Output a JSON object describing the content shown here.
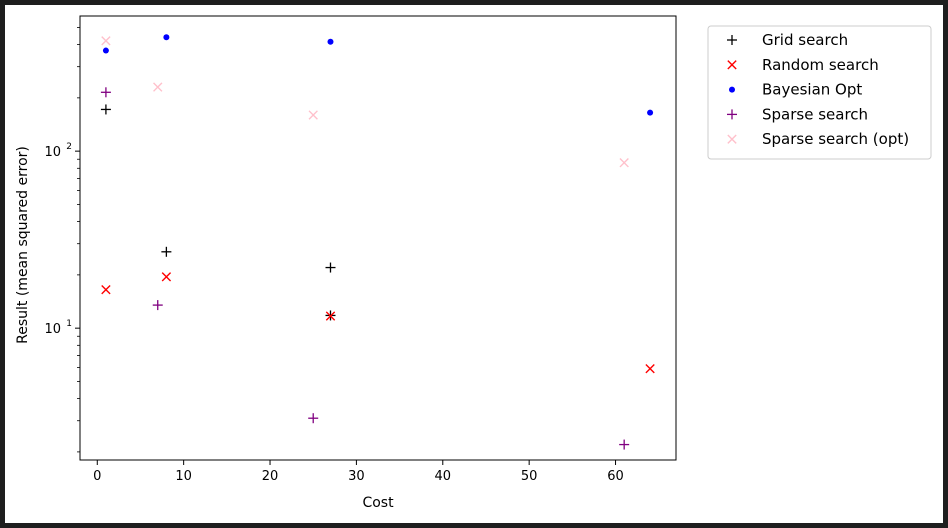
{
  "chart_data": {
    "type": "scatter",
    "xlabel": "Cost",
    "ylabel": "Result (mean squared error)",
    "xlim": [
      -2,
      67
    ],
    "ylim": [
      1.8,
      580
    ],
    "yscale": "log",
    "grid": false,
    "legend_position": "outside-top-right",
    "x_ticks": [
      0,
      10,
      20,
      30,
      40,
      50,
      60
    ],
    "y_ticks": [
      {
        "value": 10,
        "base": "10",
        "exp": "1"
      },
      {
        "value": 100,
        "base": "10",
        "exp": "2"
      }
    ],
    "series": [
      {
        "name": "Grid search",
        "marker": "plus",
        "color": "#000000",
        "points": [
          [
            1,
            172
          ],
          [
            8,
            27
          ],
          [
            27,
            22
          ],
          [
            27,
            11.8
          ]
        ]
      },
      {
        "name": "Random search",
        "marker": "x",
        "color": "#ff0000",
        "points": [
          [
            1,
            16.5
          ],
          [
            8,
            19.5
          ],
          [
            27,
            11.7
          ],
          [
            64,
            5.9
          ]
        ]
      },
      {
        "name": "Bayesian Opt",
        "marker": "dot",
        "color": "#0000ff",
        "points": [
          [
            1,
            370
          ],
          [
            8,
            440
          ],
          [
            27,
            415
          ],
          [
            64,
            165
          ]
        ]
      },
      {
        "name": "Sparse search",
        "marker": "plus",
        "color": "#800080",
        "points": [
          [
            1,
            215
          ],
          [
            7,
            13.5
          ],
          [
            25,
            3.1
          ],
          [
            61,
            2.2
          ]
        ]
      },
      {
        "name": "Sparse search (opt)",
        "marker": "x",
        "color": "#ffc0cb",
        "points": [
          [
            1,
            420
          ],
          [
            7,
            230
          ],
          [
            25,
            160
          ],
          [
            61,
            86
          ]
        ]
      }
    ]
  }
}
